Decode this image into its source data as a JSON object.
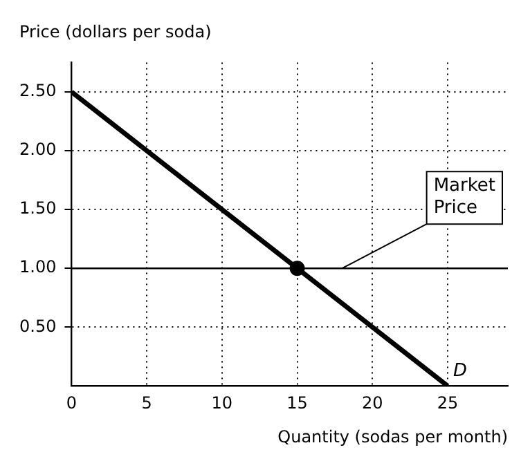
{
  "chart_data": {
    "type": "line",
    "ylabel": "Price (dollars per soda)",
    "xlabel": "Quantity (sodas per month)",
    "xlim": [
      0,
      29
    ],
    "ylim": [
      0,
      2.75
    ],
    "xticks": [
      0,
      5,
      10,
      15,
      20,
      25
    ],
    "yticks": [
      {
        "value": 0.5,
        "label": "0.50"
      },
      {
        "value": 1,
        "label": "1.00"
      },
      {
        "value": 1.5,
        "label": "1.50"
      },
      {
        "value": 2,
        "label": "2.00"
      },
      {
        "value": 2.5,
        "label": "2.50"
      }
    ],
    "grid": true,
    "legend": false,
    "series": [
      {
        "name": "D",
        "type": "line",
        "x": [
          0,
          25
        ],
        "values": [
          2.5,
          0
        ],
        "color": "#000000"
      },
      {
        "type": "scatter",
        "x": [
          15
        ],
        "values": [
          1
        ],
        "color": "#000000"
      }
    ],
    "ref_lines": [
      {
        "axis": "y",
        "value": 1,
        "label": "Market Price",
        "color": "#000000"
      }
    ]
  }
}
